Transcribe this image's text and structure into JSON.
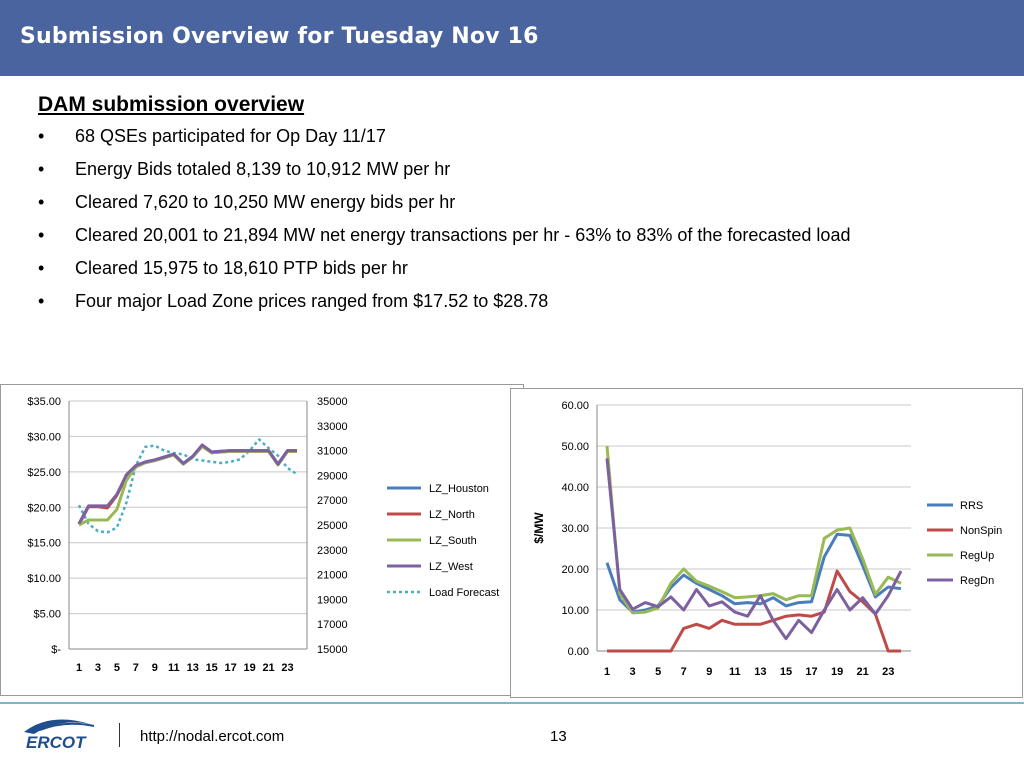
{
  "header": {
    "title": "Submission Overview for Tuesday Nov 16"
  },
  "content": {
    "section_title": "DAM submission overview",
    "bullets": [
      "68 QSEs participated for Op Day 11/17",
      "Energy Bids totaled 8,139 to 10,912 MW per hr",
      "Cleared 7,620 to 10,250 MW energy bids per hr",
      "Cleared 20,001 to 21,894 MW net energy transactions per hr - 63% to 83% of the forecasted load",
      "Cleared 15,975 to 18,610 PTP bids per hr",
      "Four major Load Zone prices ranged from $17.52 to $28.78"
    ],
    "bullet_char": "•"
  },
  "colors": {
    "header_bg": "#4a64a0",
    "lz_houston": "#4a7ebb",
    "lz_north": "#be4b48",
    "lz_south": "#98b954",
    "lz_west": "#7d60a0",
    "load_forecast": "#4bacc6",
    "rrs": "#4a7ebb",
    "nonspin": "#be4b48",
    "regup": "#98b954",
    "regdn": "#7d60a0"
  },
  "chart_data": [
    {
      "type": "line",
      "x": [
        1,
        2,
        3,
        4,
        5,
        6,
        7,
        8,
        9,
        10,
        11,
        12,
        13,
        14,
        15,
        16,
        17,
        18,
        19,
        20,
        21,
        22,
        23,
        24
      ],
      "x_tick_labels": [
        "1",
        "3",
        "5",
        "7",
        "9",
        "11",
        "13",
        "15",
        "17",
        "19",
        "21",
        "23"
      ],
      "y_tick_labels": [
        "$-",
        "$5.00",
        "$10.00",
        "$15.00",
        "$20.00",
        "$25.00",
        "$30.00",
        "$35.00"
      ],
      "ylim": [
        0,
        35
      ],
      "y2_tick_labels": [
        "15000",
        "17000",
        "19000",
        "21000",
        "23000",
        "25000",
        "27000",
        "29000",
        "31000",
        "33000",
        "35000"
      ],
      "y2lim": [
        15000,
        35000
      ],
      "grid": true,
      "legend_position": "right",
      "series": [
        {
          "name": "LZ_Houston",
          "axis": "left",
          "color_key": "lz_houston",
          "values": [
            17.6,
            20.1,
            20.1,
            20.1,
            21.8,
            24.5,
            25.8,
            26.3,
            26.6,
            27.0,
            27.5,
            26.2,
            27.2,
            28.7,
            27.8,
            27.9,
            28.0,
            28.0,
            28.0,
            28.0,
            28.0,
            26.1,
            28.0,
            28.0
          ]
        },
        {
          "name": "LZ_North",
          "axis": "left",
          "color_key": "lz_north",
          "values": [
            17.6,
            20.1,
            20.1,
            19.9,
            21.7,
            24.4,
            25.7,
            26.3,
            26.6,
            27.0,
            27.4,
            26.1,
            27.1,
            28.6,
            27.7,
            27.8,
            27.9,
            27.9,
            27.9,
            27.9,
            27.9,
            26.0,
            27.9,
            27.9
          ]
        },
        {
          "name": "LZ_South",
          "axis": "left",
          "color_key": "lz_south",
          "values": [
            17.5,
            18.2,
            18.2,
            18.2,
            19.7,
            23.8,
            25.7,
            26.3,
            26.6,
            27.0,
            27.4,
            26.1,
            27.1,
            28.6,
            27.7,
            27.8,
            27.9,
            27.9,
            27.9,
            27.9,
            27.9,
            26.0,
            27.9,
            27.9
          ]
        },
        {
          "name": "LZ_West",
          "axis": "left",
          "color_key": "lz_west",
          "values": [
            17.7,
            20.2,
            20.2,
            20.2,
            21.8,
            24.6,
            25.9,
            26.4,
            26.7,
            27.1,
            27.5,
            26.2,
            27.2,
            28.8,
            27.8,
            27.9,
            28.0,
            28.0,
            28.0,
            28.0,
            28.0,
            26.1,
            28.0,
            28.0
          ]
        },
        {
          "name": "Load Forecast",
          "axis": "right",
          "color_key": "load_forecast",
          "dashed": true,
          "values": [
            26600,
            25100,
            24500,
            24400,
            24800,
            26800,
            29800,
            31300,
            31400,
            31000,
            30800,
            30700,
            30300,
            30200,
            30100,
            30000,
            30100,
            30300,
            31000,
            31900,
            31200,
            30600,
            29600,
            29100
          ]
        }
      ]
    },
    {
      "type": "line",
      "x": [
        1,
        2,
        3,
        4,
        5,
        6,
        7,
        8,
        9,
        10,
        11,
        12,
        13,
        14,
        15,
        16,
        17,
        18,
        19,
        20,
        21,
        22,
        23,
        24
      ],
      "x_tick_labels": [
        "1",
        "3",
        "5",
        "7",
        "9",
        "11",
        "13",
        "15",
        "17",
        "19",
        "21",
        "23"
      ],
      "y_tick_labels": [
        "0.00",
        "10.00",
        "20.00",
        "30.00",
        "40.00",
        "50.00",
        "60.00"
      ],
      "ylim": [
        0,
        60
      ],
      "ylabel": "$/MW",
      "grid": true,
      "legend_position": "right",
      "series": [
        {
          "name": "RRS",
          "color_key": "rrs",
          "values": [
            21.5,
            12.5,
            9.5,
            10,
            11,
            15.5,
            18.5,
            16.5,
            15,
            13.5,
            11.5,
            11.8,
            11.5,
            13,
            11,
            11.8,
            12,
            23,
            28.5,
            28.2,
            20.8,
            13.2,
            15.6,
            15.2
          ]
        },
        {
          "name": "NonSpin",
          "color_key": "nonspin",
          "values": [
            0,
            0,
            0,
            0,
            0,
            0,
            5.5,
            6.5,
            5.5,
            7.5,
            6.5,
            6.5,
            6.5,
            7.5,
            8.5,
            8.8,
            8.5,
            9.5,
            19.5,
            14.5,
            12,
            9,
            0,
            0
          ]
        },
        {
          "name": "RegUp",
          "color_key": "regup",
          "values": [
            50,
            14,
            9.3,
            9.5,
            10.5,
            16.5,
            20,
            17,
            15.8,
            14.5,
            13,
            13.2,
            13.5,
            14,
            12.5,
            13.5,
            13.5,
            27.5,
            29.5,
            30,
            22.5,
            13.8,
            18,
            16.5
          ]
        },
        {
          "name": "RegDn",
          "color_key": "regdn",
          "values": [
            47,
            15,
            10.2,
            11.8,
            10.8,
            13.2,
            10,
            15,
            11,
            12,
            9.5,
            8.5,
            13.5,
            7.5,
            3,
            7.5,
            4.5,
            10,
            15,
            10,
            13,
            9,
            13.5,
            19.5
          ]
        }
      ]
    }
  ],
  "footer": {
    "logo_text": "ERCOT",
    "url": "http://nodal.ercot.com",
    "page_number": "13"
  }
}
